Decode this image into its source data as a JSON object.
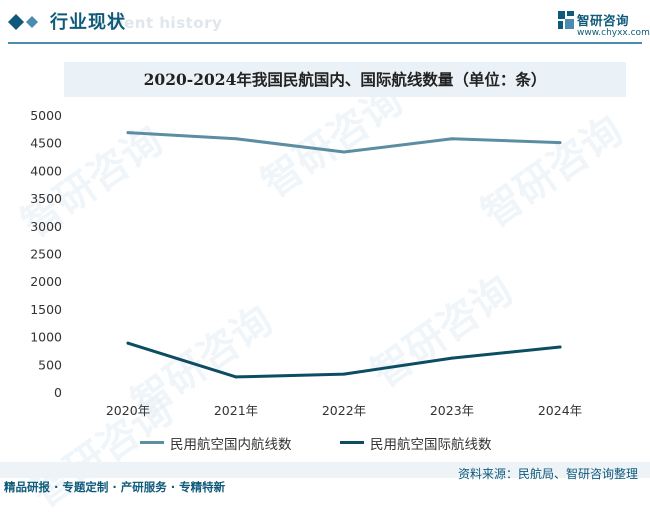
{
  "header": {
    "title": "行业现状",
    "ghost_text": "ment history"
  },
  "brand": {
    "name": "智研咨询",
    "url": "www.chyxx.com",
    "color": "#0f5a7a"
  },
  "watermark": {
    "text": "智研咨询"
  },
  "chart_data": {
    "type": "line",
    "title": "2020-2024年我国民航国内、国际航线数量（单位：条）",
    "categories": [
      "2020年",
      "2021年",
      "2022年",
      "2023年",
      "2024年"
    ],
    "ylim": [
      0,
      5000
    ],
    "yticks": [
      "0",
      "500",
      "1000",
      "1500",
      "2000",
      "2500",
      "3000",
      "3500",
      "4000",
      "4500",
      "5000"
    ],
    "grid": false,
    "legend_position": "bottom",
    "series": [
      {
        "name": "民用航空国内航线数",
        "values": [
          4700,
          4590,
          4350,
          4590,
          4520
        ],
        "color": "#5b8ea3"
      },
      {
        "name": "民用航空国际航线数",
        "values": [
          900,
          290,
          340,
          630,
          830
        ],
        "color": "#0d4d63"
      }
    ]
  },
  "footer": {
    "source": "资料来源：民航局、智研咨询整理",
    "tagline": "精品研报 · 专题定制 · 产研服务 · 专精特新"
  }
}
